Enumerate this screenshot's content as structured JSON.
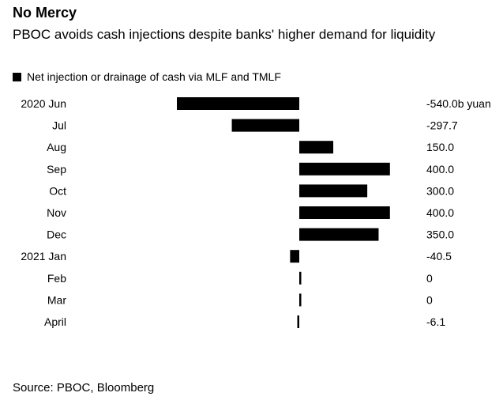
{
  "title": "No Mercy",
  "subtitle": "PBOC avoids cash injections despite banks' higher demand for liquidity",
  "legend": {
    "label": "Net injection or drainage of cash via MLF and TMLF"
  },
  "source": "Source: PBOC, Bloomberg",
  "colors": {
    "bar": "#000000",
    "text": "#000000",
    "background": "#ffffff"
  },
  "chart_data": {
    "type": "bar",
    "orientation": "horizontal",
    "title": "No Mercy",
    "subtitle": "PBOC avoids cash injections despite banks' higher demand for liquidity",
    "categories": [
      "2020 Jun",
      "Jul",
      "Aug",
      "Sep",
      "Oct",
      "Nov",
      "Dec",
      "2021 Jan",
      "Feb",
      "Mar",
      "April"
    ],
    "values": [
      -540.0,
      -297.7,
      150.0,
      400.0,
      300.0,
      400.0,
      350.0,
      -40.5,
      0,
      0,
      -6.1
    ],
    "value_labels": [
      "-540.0b yuan",
      "-297.7",
      "150.0",
      "400.0",
      "300.0",
      "400.0",
      "350.0",
      "-40.5",
      "0",
      "0",
      "-6.1"
    ],
    "series": [
      {
        "name": "Net injection or drainage of cash via MLF and TMLF",
        "values": [
          -540.0,
          -297.7,
          150.0,
          400.0,
          300.0,
          400.0,
          350.0,
          -40.5,
          0,
          0,
          -6.1
        ]
      }
    ],
    "xlim": [
      -540,
      400
    ],
    "unit": "b yuan",
    "xlabel": "",
    "ylabel": "",
    "grid": false
  }
}
